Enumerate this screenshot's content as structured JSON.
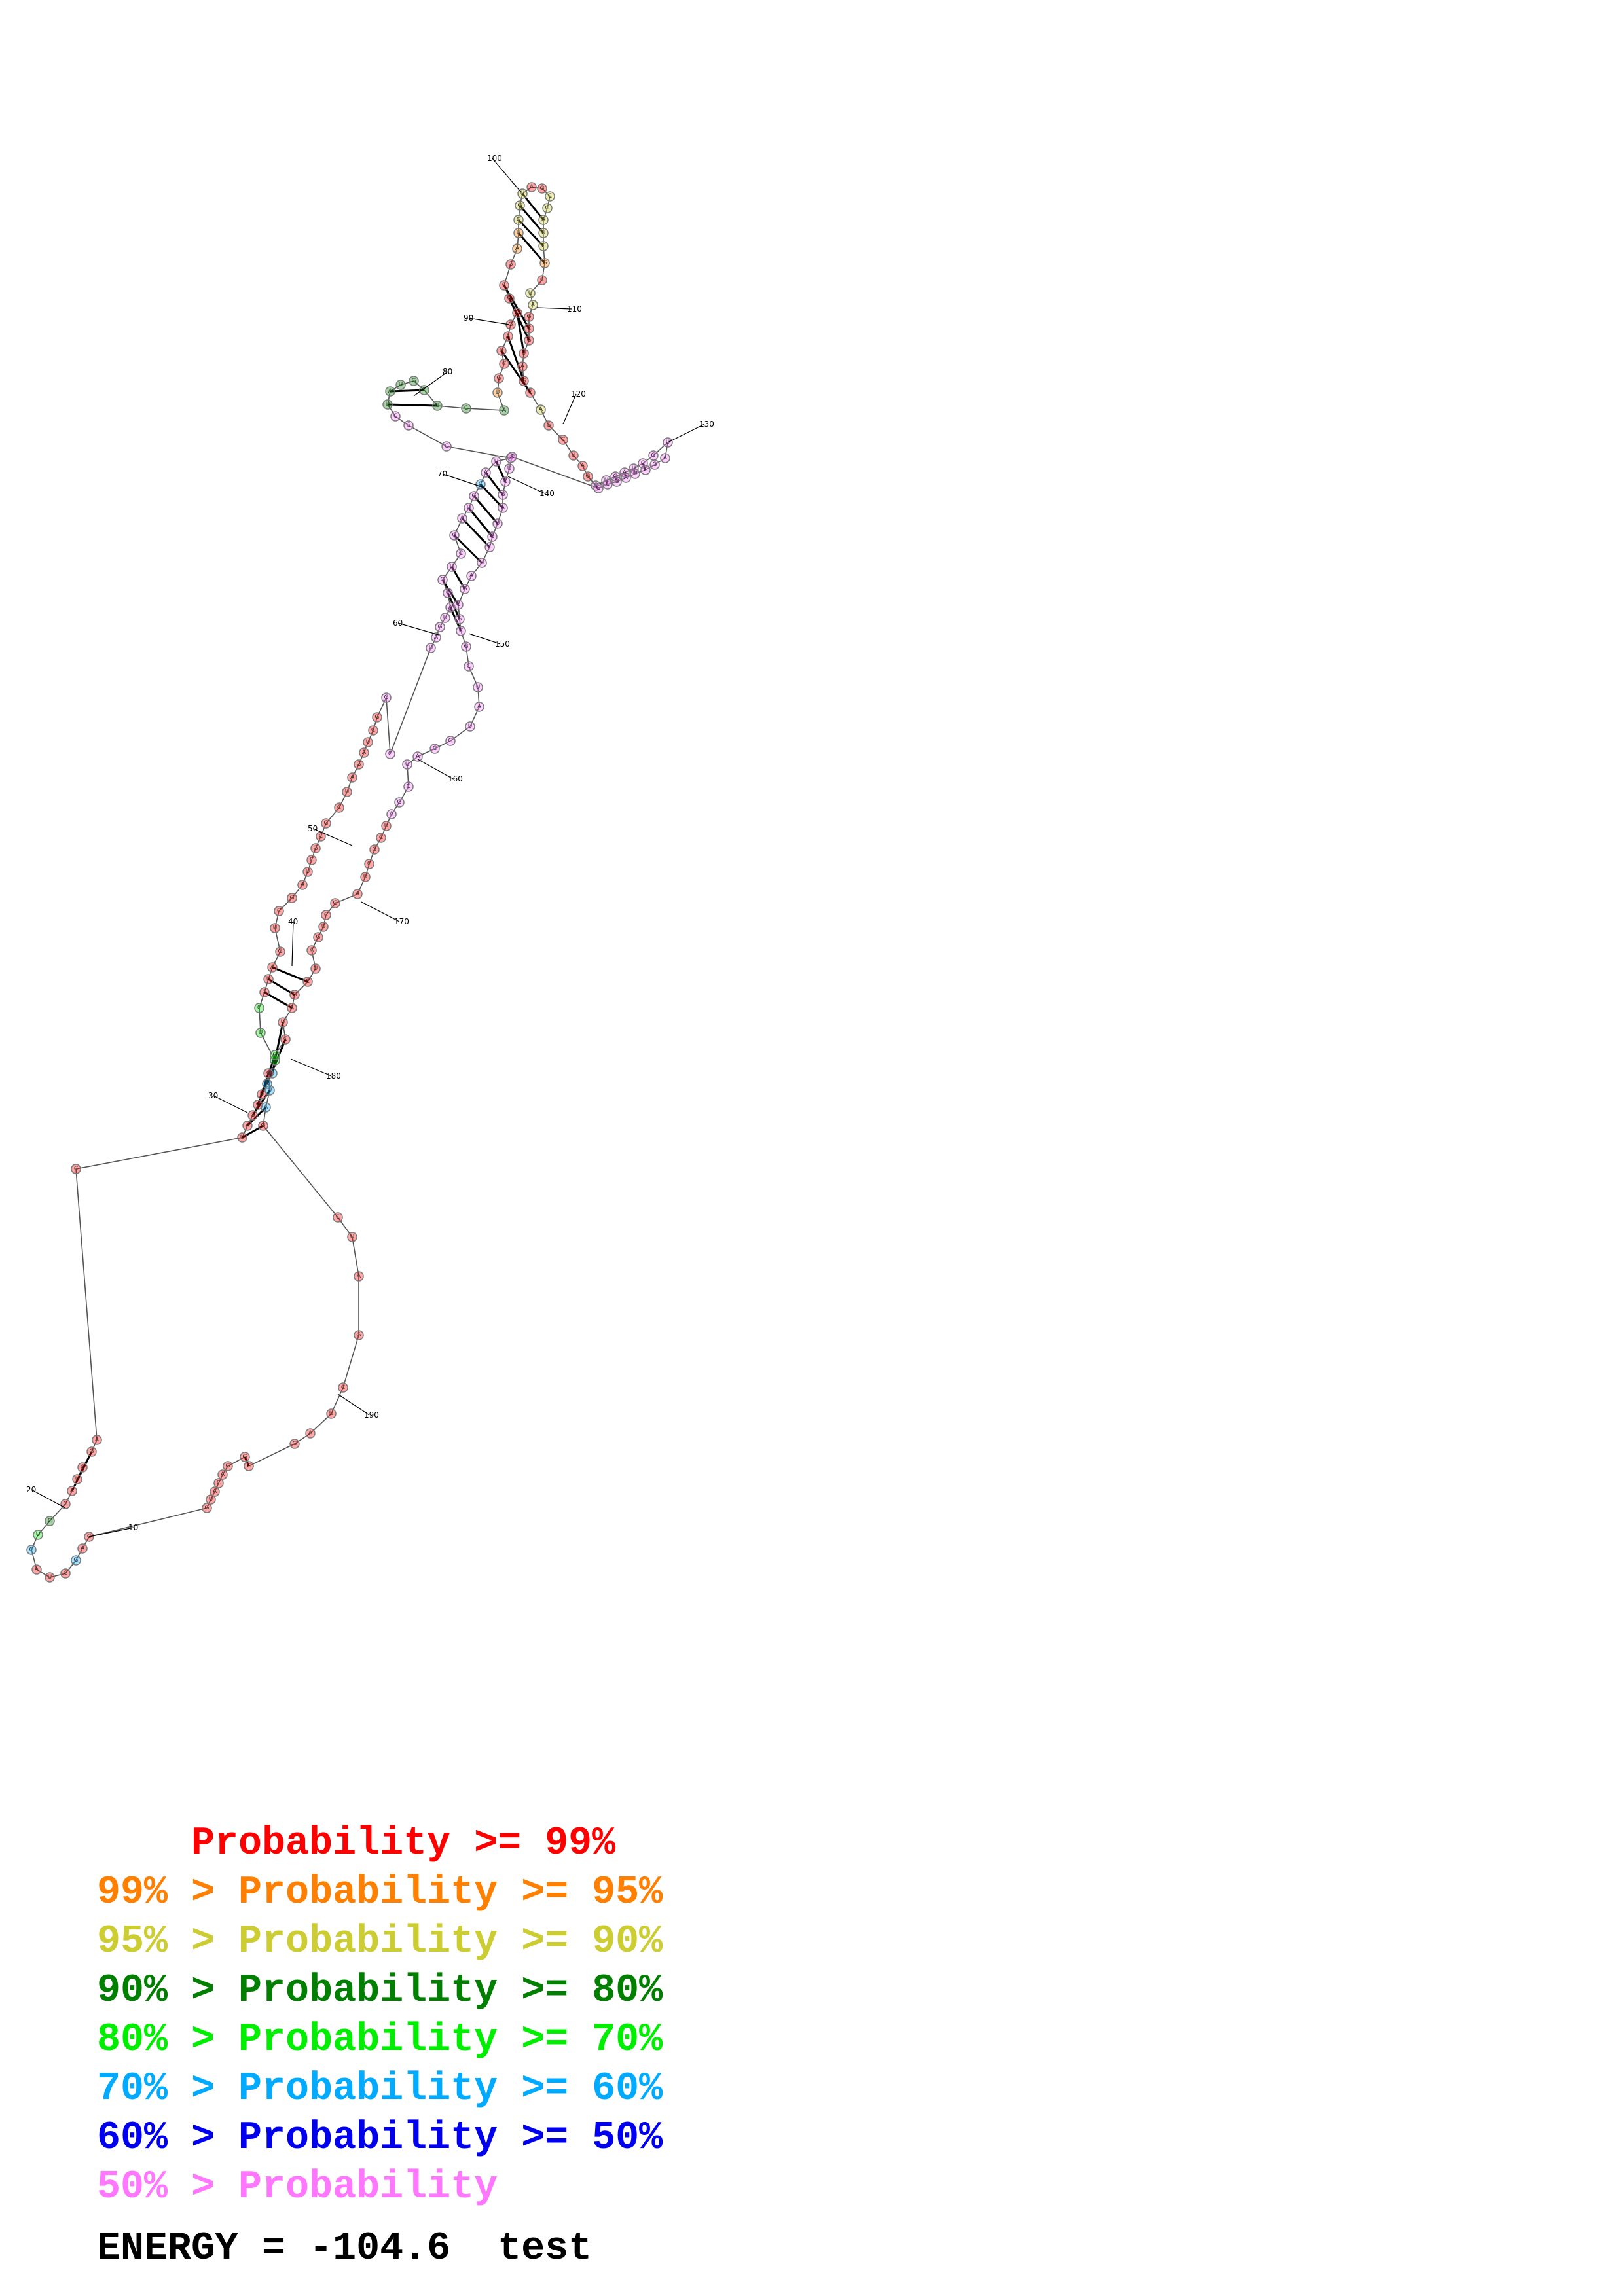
{
  "diagram": {
    "type": "rna-secondary-structure",
    "nucleotide_count": 196,
    "position_labels": [
      "10",
      "20",
      "30",
      "40",
      "50",
      "60",
      "70",
      "80",
      "90",
      "100",
      "110",
      "120",
      "130",
      "140",
      "150",
      "160",
      "170",
      "180",
      "190"
    ]
  },
  "legend": {
    "items": [
      {
        "prefix": "    ",
        "text": "Probability >= 99%",
        "color": "#ff0000"
      },
      {
        "prefix": "99% > ",
        "text": "Probability >= 95%",
        "color": "#ff7f00"
      },
      {
        "prefix": "95% > ",
        "text": "Probability >= 90%",
        "color": "#cccc33"
      },
      {
        "prefix": "90% > ",
        "text": "Probability >= 80%",
        "color": "#007f00"
      },
      {
        "prefix": "80% > ",
        "text": "Probability >= 70%",
        "color": "#00ee00"
      },
      {
        "prefix": "70% > ",
        "text": "Probability >= 60%",
        "color": "#00aaff"
      },
      {
        "prefix": "60% > ",
        "text": "Probability >= 50%",
        "color": "#0000ee"
      },
      {
        "prefix": "50% > ",
        "text": "Probability",
        "color": "#ff77ff"
      }
    ]
  },
  "energy": {
    "label": "ENERGY = ",
    "value": "-104.6",
    "name": "test"
  },
  "colors": {
    "p99": "#ff0000",
    "p95": "#ff7f00",
    "p90": "#cccc33",
    "p80": "#007f00",
    "p70": "#00ee00",
    "p60": "#00aaff",
    "p50": "#0000ee",
    "plow": "#ff77ff"
  }
}
